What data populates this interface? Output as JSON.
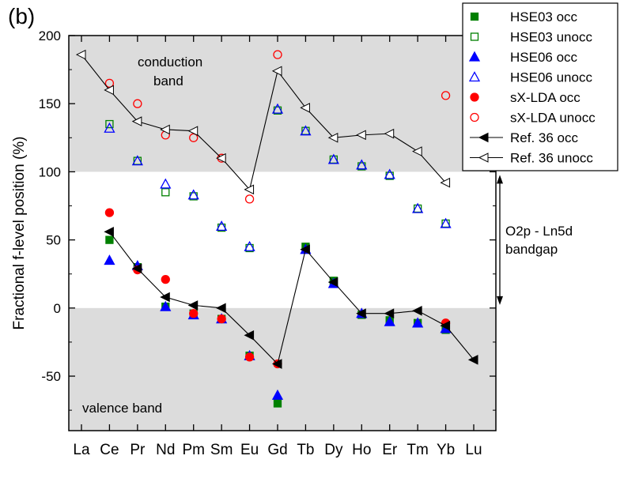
{
  "panel_label": "(b)",
  "annotations": {
    "conduction_line1": "conduction",
    "conduction_line2": "band",
    "valence": "valence band",
    "gap_line1": "O2p - Ln5d",
    "gap_line2": "bandgap"
  },
  "colors": {
    "hse03": "#008000",
    "hse06": "#0000ff",
    "sxlda": "#ff0000",
    "ref36": "#000000",
    "band_shade": "#dcdcdc"
  },
  "chart_data": {
    "type": "scatter",
    "title": "",
    "xlabel": "",
    "ylabel": "Fractional f-level position (%)",
    "categories": [
      "La",
      "Ce",
      "Pr",
      "Nd",
      "Pm",
      "Sm",
      "Eu",
      "Gd",
      "Tb",
      "Dy",
      "Ho",
      "Er",
      "Tm",
      "Yb",
      "Lu"
    ],
    "ylim": [
      -90,
      200
    ],
    "yticks": [
      -50,
      0,
      50,
      100,
      150,
      200
    ],
    "ytick_labels": [
      "-50",
      "0",
      "50",
      "100",
      "150",
      "200"
    ],
    "shaded_regions": [
      [
        100,
        200
      ],
      [
        -90,
        0
      ]
    ],
    "legend_position": "top-right",
    "series": [
      {
        "name": "HSE03 occ",
        "marker": "square",
        "filled": true,
        "color": "#008000",
        "values": [
          null,
          50,
          30,
          1,
          -4,
          -8,
          -35,
          -70,
          45,
          20,
          -5,
          -9,
          -11,
          -16,
          null
        ]
      },
      {
        "name": "HSE03 unocc",
        "marker": "square",
        "filled": false,
        "color": "#008000",
        "values": [
          null,
          135,
          108,
          85,
          82,
          59,
          44,
          145,
          130,
          109,
          104,
          97,
          73,
          62,
          null
        ]
      },
      {
        "name": "HSE06 occ",
        "marker": "triangle-up",
        "filled": true,
        "color": "#0000ff",
        "values": [
          null,
          35,
          31,
          1,
          -5,
          -8,
          -35,
          -64,
          43,
          18,
          -4,
          -10,
          -11,
          -15,
          null
        ]
      },
      {
        "name": "HSE06 unocc",
        "marker": "triangle-up",
        "filled": false,
        "color": "#0000ff",
        "values": [
          null,
          132,
          108,
          91,
          83,
          60,
          45,
          146,
          130,
          109,
          105,
          98,
          73,
          62,
          null
        ]
      },
      {
        "name": "sX-LDA occ",
        "marker": "circle",
        "filled": true,
        "color": "#ff0000",
        "values": [
          null,
          70,
          28,
          21,
          -4,
          -8,
          -36,
          -41,
          null,
          null,
          null,
          null,
          null,
          -11,
          null
        ]
      },
      {
        "name": "sX-LDA unocc",
        "marker": "circle",
        "filled": false,
        "color": "#ff0000",
        "values": [
          null,
          165,
          150,
          127,
          125,
          110,
          80,
          186,
          null,
          null,
          null,
          null,
          null,
          156,
          null
        ]
      },
      {
        "name": "Ref. 36 occ",
        "marker": "triangle-left",
        "filled": true,
        "color": "#000000",
        "line": true,
        "values": [
          null,
          56,
          29,
          8,
          2,
          0,
          -20,
          -41,
          43,
          19,
          -4,
          -4,
          -2,
          -13,
          -38
        ]
      },
      {
        "name": "Ref. 36 unocc",
        "marker": "triangle-left",
        "filled": false,
        "color": "#000000",
        "line": true,
        "values": [
          186,
          160,
          137,
          131,
          130,
          110,
          87,
          174,
          147,
          125,
          127,
          128,
          115,
          92,
          null
        ]
      }
    ]
  }
}
